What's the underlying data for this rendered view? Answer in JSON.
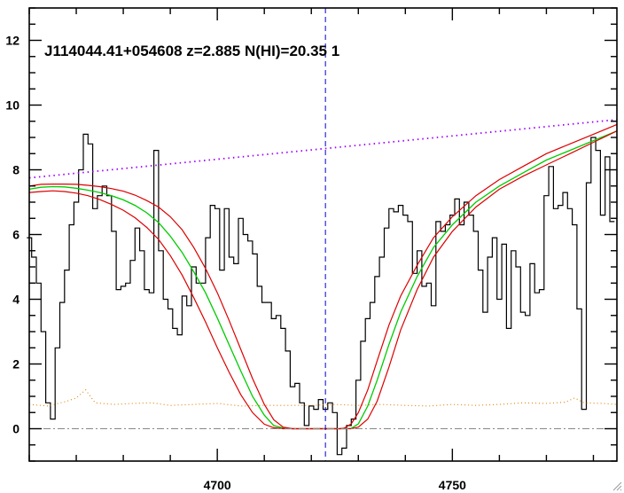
{
  "chart_data": {
    "type": "line",
    "title": "J114044.41+054608 z=2.885 N(HI)=20.35 1",
    "xlabel": "",
    "ylabel": "",
    "xlim": [
      4660,
      4785
    ],
    "ylim": [
      -1,
      13
    ],
    "x_ticks": [
      4700,
      4750
    ],
    "y_ticks": [
      0,
      2,
      4,
      6,
      8,
      10,
      12
    ],
    "grid": false,
    "reference_line_x": 4723,
    "zero_line_y": 0,
    "colors": {
      "flux": "#000000",
      "fit": "#00cc00",
      "fit_bounds": "#dd0000",
      "continuum": "#a000ff",
      "error": "#e08000",
      "reference": "#0000cc",
      "zero": "#888888"
    },
    "series": [
      {
        "style": "flux-histogram",
        "x": [
          4660.0,
          4661.0,
          4662.0,
          4663.0,
          4664.0,
          4665.0,
          4666.0,
          4667.0,
          4668.0,
          4669.0,
          4670.0,
          4671.0,
          4672.0,
          4673.0,
          4674.0,
          4675.0,
          4676.0,
          4677.0,
          4678.0,
          4679.0,
          4680.0,
          4681.0,
          4682.0,
          4683.0,
          4684.0,
          4685.0,
          4686.0,
          4687.0,
          4688.0,
          4689.0,
          4690.0,
          4691.0,
          4692.0,
          4693.0,
          4694.0,
          4695.0,
          4696.0,
          4697.0,
          4698.0,
          4699.0,
          4700.0,
          4701.0,
          4702.0,
          4703.0,
          4704.0,
          4705.0,
          4706.0,
          4707.0,
          4708.0,
          4709.0,
          4710.0,
          4711.0,
          4712.0,
          4713.0,
          4714.0,
          4715.0,
          4716.0,
          4717.0,
          4718.0,
          4719.0,
          4720.0,
          4721.0,
          4722.0,
          4723.0,
          4724.0,
          4725.0,
          4726.0,
          4727.0,
          4728.0,
          4729.0,
          4730.0,
          4731.0,
          4732.0,
          4733.0,
          4734.0,
          4735.0,
          4736.0,
          4737.0,
          4738.0,
          4739.0,
          4740.0,
          4741.0,
          4742.0,
          4743.0,
          4744.0,
          4745.0,
          4746.0,
          4747.0,
          4748.0,
          4749.0,
          4750.0,
          4751.0,
          4752.0,
          4753.0,
          4754.0,
          4755.0,
          4756.0,
          4757.0,
          4758.0,
          4759.0,
          4760.0,
          4761.0,
          4762.0,
          4763.0,
          4764.0,
          4765.0,
          4766.0,
          4767.0,
          4768.0,
          4769.0,
          4770.0,
          4771.0,
          4772.0,
          4773.0,
          4774.0,
          4775.0,
          4776.0,
          4777.0,
          4778.0,
          4779.0,
          4780.0,
          4781.0,
          4782.0,
          4783.0,
          4784.0
        ],
        "values": [
          5.9,
          5.3,
          4.5,
          3.0,
          0.8,
          0.3,
          2.5,
          3.9,
          4.9,
          6.3,
          7.0,
          8.0,
          9.1,
          8.8,
          6.8,
          7.2,
          7.5,
          7.2,
          6.1,
          4.3,
          4.4,
          4.5,
          5.2,
          6.2,
          5.5,
          4.3,
          4.2,
          8.6,
          5.5,
          4.0,
          3.7,
          3.1,
          2.9,
          4.1,
          3.8,
          5.0,
          4.5,
          4.5,
          5.9,
          6.9,
          6.8,
          4.9,
          6.8,
          5.3,
          5.1,
          6.5,
          6.0,
          5.8,
          5.4,
          4.4,
          3.9,
          3.9,
          3.4,
          3.5,
          3.1,
          2.4,
          1.3,
          1.4,
          0.8,
          0.1,
          0.7,
          0.6,
          0.9,
          0.6,
          0.8,
          0.5,
          -0.8,
          -0.6,
          0.1,
          0.3,
          1.5,
          2.7,
          3.4,
          3.9,
          4.7,
          5.3,
          6.2,
          6.8,
          6.7,
          6.9,
          6.6,
          6.4,
          4.8,
          5.5,
          4.4,
          4.5,
          3.8,
          6.4,
          6.1,
          6.3,
          6.6,
          7.1,
          6.3,
          7.0,
          6.6,
          6.1,
          4.9,
          3.6,
          5.3,
          5.9,
          4.0,
          5.7,
          3.1,
          5.5,
          5.0,
          3.6,
          3.5,
          5.1,
          4.2,
          4.3,
          7.2,
          8.1,
          6.8,
          6.9,
          7.3,
          6.8,
          6.3,
          3.7,
          0.6,
          7.6,
          9.0,
          8.6,
          6.6,
          8.4,
          6.4
        ]
      },
      {
        "style": "fit",
        "x": [
          4660.0,
          4662.5,
          4665.0,
          4667.5,
          4670.0,
          4672.5,
          4675.0,
          4677.5,
          4680.0,
          4682.5,
          4685.0,
          4687.5,
          4690.0,
          4692.5,
          4695.0,
          4697.5,
          4700.0,
          4702.5,
          4705.0,
          4707.5,
          4710.0,
          4712.0,
          4714.0,
          4716.0,
          4717.5,
          4719.0,
          4720.0,
          4722.0,
          4724.0,
          4726.0,
          4727.0,
          4728.5,
          4730.0,
          4732.0,
          4734.0,
          4736.5,
          4739.0,
          4742.5,
          4746.0,
          4750.0,
          4755.0,
          4760.0,
          4765.0,
          4770.0,
          4775.0,
          4780.0,
          4785.0
        ],
        "values": [
          7.4,
          7.46,
          7.48,
          7.47,
          7.43,
          7.37,
          7.3,
          7.2,
          7.07,
          6.9,
          6.67,
          6.37,
          5.95,
          5.45,
          4.85,
          4.2,
          3.42,
          2.6,
          1.78,
          1.0,
          0.42,
          0.1,
          0.02,
          0.0,
          0.0,
          0.0,
          0.0,
          0.0,
          0.0,
          0.0,
          0.0,
          0.01,
          0.15,
          0.7,
          1.5,
          2.6,
          3.6,
          4.7,
          5.6,
          6.3,
          7.0,
          7.5,
          7.9,
          8.3,
          8.6,
          8.9,
          9.2
        ]
      },
      {
        "style": "fit-bound",
        "x": [
          4660.0,
          4662.5,
          4665.0,
          4667.5,
          4670.0,
          4672.5,
          4675.0,
          4677.5,
          4680.0,
          4682.5,
          4685.0,
          4687.5,
          4690.0,
          4692.5,
          4695.0,
          4697.5,
          4700.0,
          4702.5,
          4705.0,
          4707.5,
          4710.0,
          4712.0,
          4714.0,
          4716.0,
          4717.5,
          4719.0,
          4720.0,
          4722.0,
          4724.0,
          4726.0,
          4727.0,
          4728.5,
          4730.0,
          4732.0,
          4734.0,
          4736.5,
          4739.0,
          4742.5,
          4746.0,
          4750.0,
          4755.0,
          4760.0,
          4765.0,
          4770.0,
          4775.0,
          4780.0,
          4785.0
        ],
        "values": [
          7.5,
          7.55,
          7.56,
          7.56,
          7.55,
          7.52,
          7.48,
          7.42,
          7.34,
          7.22,
          7.05,
          6.85,
          6.55,
          6.15,
          5.6,
          4.95,
          4.2,
          3.35,
          2.45,
          1.55,
          0.75,
          0.28,
          0.05,
          0.0,
          0.0,
          0.0,
          0.0,
          0.0,
          0.0,
          0.0,
          0.0,
          0.0,
          0.05,
          0.3,
          0.85,
          1.9,
          3.05,
          4.3,
          5.3,
          6.1,
          6.85,
          7.4,
          7.8,
          8.15,
          8.5,
          8.85,
          9.2
        ]
      },
      {
        "style": "fit-bound",
        "x": [
          4660.0,
          4662.5,
          4665.0,
          4667.5,
          4670.0,
          4672.5,
          4675.0,
          4677.5,
          4680.0,
          4682.5,
          4685.0,
          4687.5,
          4690.0,
          4692.5,
          4695.0,
          4697.5,
          4700.0,
          4702.5,
          4705.0,
          4707.5,
          4710.0,
          4712.0,
          4714.0,
          4716.0,
          4717.5,
          4719.0,
          4720.0,
          4722.0,
          4724.0,
          4726.0,
          4727.0,
          4728.5,
          4730.0,
          4732.0,
          4734.0,
          4736.5,
          4739.0,
          4742.5,
          4746.0,
          4750.0,
          4755.0,
          4760.0,
          4765.0,
          4770.0,
          4775.0,
          4780.0,
          4785.0
        ],
        "values": [
          7.3,
          7.33,
          7.35,
          7.33,
          7.28,
          7.2,
          7.08,
          6.93,
          6.75,
          6.52,
          6.22,
          5.85,
          5.35,
          4.75,
          4.05,
          3.3,
          2.5,
          1.75,
          1.05,
          0.5,
          0.14,
          0.03,
          0.0,
          0.0,
          0.0,
          0.0,
          0.0,
          0.0,
          0.0,
          0.0,
          0.02,
          0.15,
          0.5,
          1.2,
          2.1,
          3.2,
          4.1,
          5.05,
          5.9,
          6.55,
          7.2,
          7.7,
          8.1,
          8.5,
          8.8,
          9.1,
          9.4
        ]
      },
      {
        "style": "continuum",
        "x": [
          4660,
          4785
        ],
        "values": [
          7.75,
          9.55
        ]
      },
      {
        "style": "error",
        "x": [
          4660,
          4664,
          4668,
          4670,
          4672,
          4674,
          4678,
          4682,
          4686,
          4690,
          4695,
          4700,
          4705,
          4710,
          4715,
          4720,
          4725,
          4730,
          4735,
          4740,
          4745,
          4750,
          4755,
          4760,
          4765,
          4770,
          4774,
          4776,
          4778,
          4782,
          4785
        ],
        "values": [
          0.75,
          0.7,
          0.85,
          0.95,
          1.2,
          0.8,
          0.75,
          0.78,
          0.8,
          0.72,
          0.75,
          0.78,
          0.7,
          0.72,
          0.72,
          0.72,
          0.75,
          0.72,
          0.75,
          0.72,
          0.7,
          0.75,
          0.72,
          0.75,
          0.8,
          0.78,
          0.82,
          0.95,
          0.8,
          0.78,
          0.75
        ]
      }
    ]
  }
}
